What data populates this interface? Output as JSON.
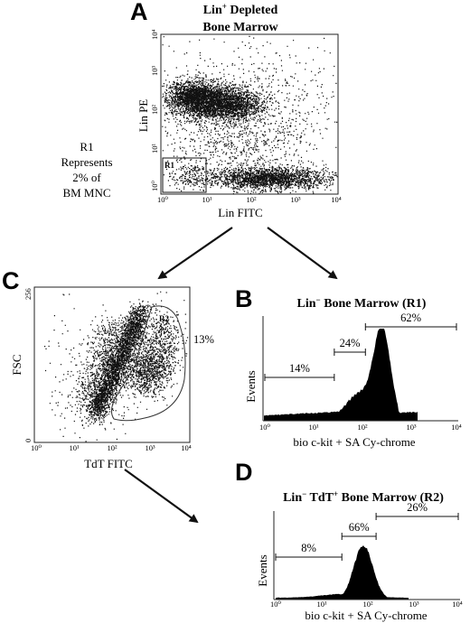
{
  "figure": {
    "note_r1": [
      "R1",
      "Represents",
      "2% of",
      "BM MNC"
    ]
  },
  "panels": {
    "A": {
      "letter": "A",
      "title_line1_main": "Lin",
      "title_line1_sup": "+",
      "title_line1_rest": " Depleted",
      "title_line2": "Bone Marrow",
      "xlabel": "Lin FITC",
      "ylabel": "Lin PE",
      "x_ticks": [
        "10⁰",
        "10¹",
        "10²",
        "10³",
        "10⁴"
      ],
      "y_ticks": [
        "10⁰",
        "10¹",
        "10²",
        "10³",
        "10⁴"
      ],
      "gate_label": "R1"
    },
    "B": {
      "letter": "B",
      "title_main": "Lin",
      "title_sup": "−",
      "title_rest": " Bone Marrow (R1)",
      "xlabel": "bio c-kit + SA Cy-chrome",
      "ylabel": "Events",
      "x_ticks": [
        "10⁰",
        "10¹",
        "10²",
        "10³",
        "10⁴"
      ],
      "markers": [
        {
          "label": "14%",
          "from": 0,
          "to": 1.45
        },
        {
          "label": "24%",
          "from": 1.45,
          "to": 2.1
        },
        {
          "label": "62%",
          "from": 2.1,
          "to": 4.0
        }
      ]
    },
    "C": {
      "letter": "C",
      "xlabel": "TdT FITC",
      "ylabel": "FSC",
      "x_ticks": [
        "10⁰",
        "10¹",
        "10²",
        "10³",
        "10⁴"
      ],
      "y_ticks": [
        "0",
        "256"
      ],
      "gate_label": "R2",
      "gate_pct": "13%"
    },
    "D": {
      "letter": "D",
      "title_main": "Lin",
      "title_sup": "−",
      "title_mid": " TdT",
      "title_sup2": "+",
      "title_rest": " Bone Marrow (R2)",
      "xlabel": "bio c-kit + SA Cy-chrome",
      "ylabel": "Events",
      "x_ticks": [
        "10⁰",
        "10¹",
        "10²",
        "10³",
        "10⁴"
      ],
      "markers": [
        {
          "label": "8%",
          "from": 0,
          "to": 1.45
        },
        {
          "label": "66%",
          "from": 1.45,
          "to": 2.2
        },
        {
          "label": "26%",
          "from": 2.2,
          "to": 4.0
        }
      ]
    }
  }
}
